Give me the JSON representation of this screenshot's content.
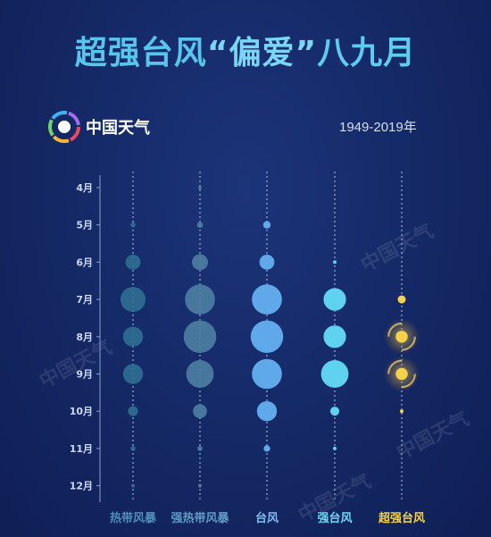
{
  "header": {
    "title_main": "超强台风",
    "title_quote_open": "“",
    "title_accent": "偏爱",
    "title_quote_close": "”",
    "title_tail": "八九月",
    "period": "1949-2019年"
  },
  "brand": {
    "name": "中国天气",
    "logo_icon": "china-weather-logo-icon",
    "watermark": "中国天气"
  },
  "colors": {
    "tropical_storm": "#2f6f92",
    "severe_tropical_storm": "#4c7fa2",
    "typhoon": "#5fa9ea",
    "strong_typhoon": "#5ed2ef",
    "super_typhoon": "#f4d24a",
    "axis": "#8aa0cf"
  },
  "chart_data": {
    "type": "bubble",
    "months": [
      "4月",
      "5月",
      "6月",
      "7月",
      "8月",
      "9月",
      "10月",
      "11月",
      "12月"
    ],
    "categories": [
      "热带风暴",
      "强热带风暴",
      "台风",
      "强台风",
      "超强台风"
    ],
    "size_scale_note": "relative frequency level (0 = none)",
    "series": [
      {
        "name": "热带风暴",
        "values": [
          0,
          1,
          3,
          5,
          4,
          4,
          2,
          1,
          0.5
        ]
      },
      {
        "name": "强热带风暴",
        "values": [
          0.5,
          1.2,
          3.2,
          6,
          6.5,
          5.5,
          2.8,
          1,
          0.5
        ]
      },
      {
        "name": "台风",
        "values": [
          0,
          1.5,
          3,
          6,
          6.5,
          6,
          4,
          1.3,
          0
        ]
      },
      {
        "name": "强台风",
        "values": [
          0,
          0,
          0.6,
          4.5,
          4.5,
          5.5,
          1.8,
          0.4,
          0
        ]
      },
      {
        "name": "超强台风",
        "values": [
          0,
          0,
          0,
          1.6,
          2.4,
          2.4,
          0.5,
          0,
          0
        ]
      }
    ]
  }
}
